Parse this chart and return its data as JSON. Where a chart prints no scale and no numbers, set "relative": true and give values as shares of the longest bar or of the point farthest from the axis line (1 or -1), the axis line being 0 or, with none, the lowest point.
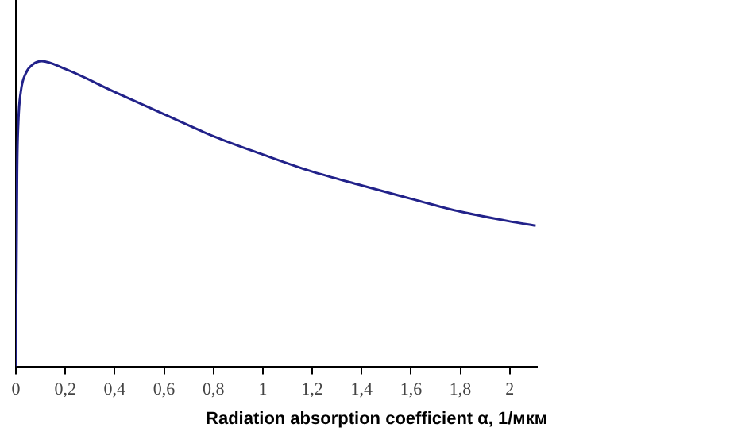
{
  "chart_data": {
    "type": "line",
    "xlabel": "Radiation absorption coefficient α, 1/мкм",
    "relative": true,
    "x": [
      0,
      0.005,
      0.01,
      0.02,
      0.04,
      0.07,
      0.105,
      0.2,
      0.4,
      0.6,
      0.8,
      1.0,
      1.2,
      1.4,
      1.6,
      1.8,
      2.0,
      2.105
    ],
    "series": [
      {
        "color": "#22228a",
        "values": [
          0,
          0.63,
          0.8,
          0.9,
          0.96,
          0.99,
          1,
          0.974,
          0.899,
          0.826,
          0.754,
          0.694,
          0.638,
          0.593,
          0.549,
          0.507,
          0.475,
          0.461
        ]
      }
    ],
    "xlim": [
      0,
      2.11
    ],
    "xticks": [
      0,
      {
        "value": 0.2,
        "label": "0,2"
      },
      {
        "value": 0.4,
        "label": "0,4"
      },
      {
        "value": 0.6,
        "label": "0,6"
      },
      {
        "value": 0.8,
        "label": "0,8"
      },
      1,
      {
        "value": 1.2,
        "label": "1,2"
      },
      {
        "value": 1.4,
        "label": "1,4"
      },
      {
        "value": 1.6,
        "label": "1,6"
      },
      {
        "value": 1.8,
        "label": "1,8"
      },
      2
    ],
    "grid": false,
    "legend": false,
    "marker": "none",
    "line_style": "solid"
  }
}
